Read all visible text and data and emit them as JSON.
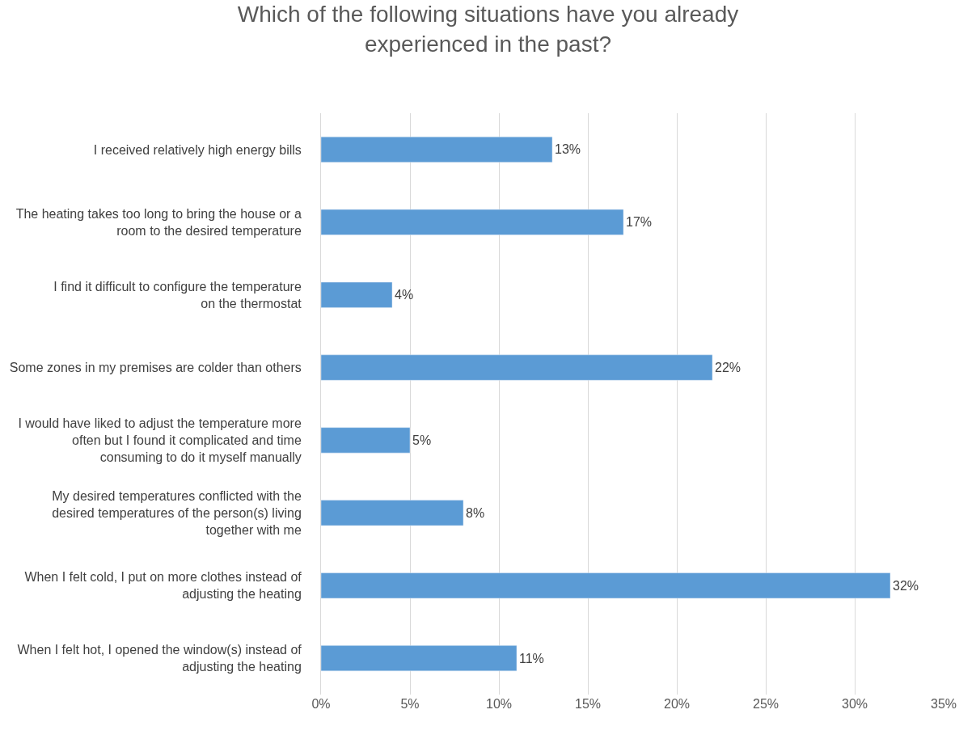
{
  "chart_data": {
    "type": "bar",
    "orientation": "horizontal",
    "title": "Which of the following situations have you already experienced in the past?",
    "categories": [
      "I received relatively high energy bills",
      "The heating takes too long to bring the house or a room to the desired temperature",
      "I find it difficult to configure the temperature on the thermostat",
      "Some zones in my premises are colder than others",
      "I would have liked to adjust the temperature more often but I found it complicated and time consuming to do it myself manually",
      "My desired temperatures conflicted with the desired temperatures of the person(s) living together with me",
      "When I felt cold, I put on more clothes instead of adjusting the heating",
      "When I felt hot, I opened the window(s) instead of adjusting the heating"
    ],
    "values": [
      13,
      17,
      4,
      22,
      5,
      8,
      32,
      11
    ],
    "value_labels": [
      "13%",
      "17%",
      "4%",
      "22%",
      "5%",
      "8%",
      "32%",
      "11%"
    ],
    "color": "#5b9bd5",
    "xlim": [
      0,
      35
    ],
    "xticks": [
      {
        "value": 0,
        "label": "0%"
      },
      {
        "value": 5,
        "label": "5%"
      },
      {
        "value": 10,
        "label": "10%"
      },
      {
        "value": 15,
        "label": "15%"
      },
      {
        "value": 20,
        "label": "20%"
      },
      {
        "value": 25,
        "label": "25%"
      },
      {
        "value": 30,
        "label": "30%"
      },
      {
        "value": 35,
        "label": "35%"
      }
    ],
    "grid": "x",
    "legend": false
  }
}
